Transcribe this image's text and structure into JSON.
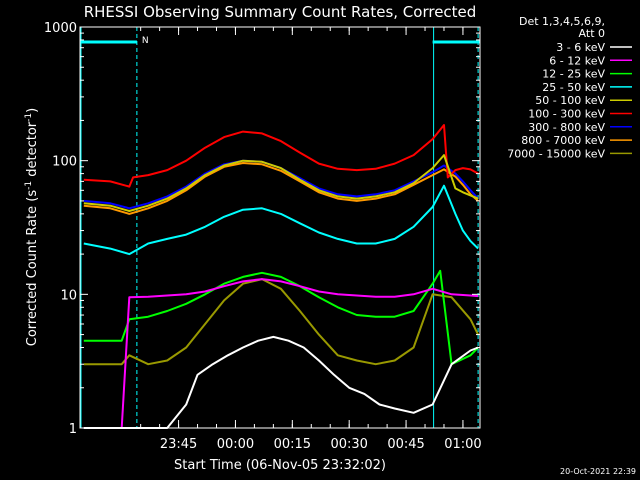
{
  "chart_data": {
    "type": "line",
    "title": "RHESSI Observing Summary Count Rates, Corrected",
    "xlabel": "Start Time (06-Nov-05 23:32:02)",
    "ylabel": "Corrected Count Rate (s",
    "ylabel_sup1": "-1",
    "ylabel_mid": " detector",
    "ylabel_sup2": "-1",
    "ylabel_end": ")",
    "y_scale": "log",
    "ylim": [
      1,
      1000
    ],
    "y_ticks": [
      1,
      10,
      100,
      1000
    ],
    "y_tick_labels": [
      "1",
      "10",
      "100",
      "1000"
    ],
    "xlim_min": [
      -13.0,
      92.5
    ],
    "x_ticks_min": [
      13,
      28,
      43,
      58,
      73,
      88
    ],
    "x_tick_labels": [
      "23:45",
      "00:00",
      "00:15",
      "00:30",
      "00:45",
      "01:00"
    ],
    "legend": {
      "placement": "right",
      "header": [
        "Det 1,3,4,5,6,9,",
        "Att 0"
      ]
    },
    "series": [
      {
        "name": "3 - 6 keV",
        "color": "#ffffff",
        "x": [
          -12,
          5,
          10,
          15,
          18,
          22,
          26,
          30,
          34,
          38,
          42,
          46,
          50,
          54,
          58,
          62,
          66,
          70,
          75,
          80,
          85,
          90,
          92
        ],
        "y": [
          1.0,
          1.0,
          1.0,
          1.5,
          2.5,
          3.0,
          3.5,
          4.0,
          4.5,
          4.8,
          4.5,
          4.0,
          3.2,
          2.5,
          2.0,
          1.8,
          1.5,
          1.4,
          1.3,
          1.5,
          3.0,
          3.8,
          4.0
        ]
      },
      {
        "name": "6 - 12 keV",
        "color": "#ff00ff",
        "x": [
          -12,
          -2,
          0,
          5,
          10,
          15,
          20,
          25,
          30,
          35,
          40,
          45,
          50,
          55,
          60,
          65,
          70,
          75,
          80,
          85,
          90,
          92
        ],
        "y": [
          1.0,
          1.0,
          9.5,
          9.6,
          9.8,
          10.0,
          10.5,
          11.5,
          12.5,
          13.0,
          12.5,
          11.5,
          10.5,
          10.0,
          9.8,
          9.6,
          9.6,
          10.0,
          11.0,
          10.0,
          9.8,
          9.7
        ]
      },
      {
        "name": "12 - 25 keV",
        "color": "#00ff00",
        "x": [
          -12,
          -2,
          0,
          5,
          10,
          15,
          20,
          25,
          30,
          35,
          40,
          45,
          50,
          55,
          60,
          65,
          70,
          75,
          80,
          82,
          85,
          90,
          92
        ],
        "y": [
          4.5,
          4.5,
          6.5,
          6.8,
          7.5,
          8.5,
          10.0,
          12.0,
          13.5,
          14.5,
          13.5,
          11.5,
          9.5,
          8.0,
          7.0,
          6.8,
          6.8,
          7.5,
          12.0,
          15.0,
          3.0,
          3.5,
          4.0
        ]
      },
      {
        "name": "25 - 50 keV",
        "color": "#00ffff",
        "x": [
          -12,
          -5,
          0,
          5,
          10,
          15,
          20,
          25,
          30,
          35,
          40,
          45,
          50,
          55,
          60,
          65,
          70,
          75,
          80,
          83,
          86,
          88,
          90,
          92
        ],
        "y": [
          24,
          22,
          20,
          24,
          26,
          28,
          32,
          38,
          43,
          44,
          40,
          34,
          29,
          26,
          24,
          24,
          26,
          32,
          45,
          65,
          40,
          30,
          25,
          22
        ]
      },
      {
        "name": "50 - 100 keV",
        "color": "#cccc00",
        "x": [
          -12,
          -5,
          0,
          5,
          10,
          15,
          20,
          25,
          30,
          35,
          40,
          45,
          50,
          55,
          60,
          65,
          70,
          75,
          80,
          83,
          86,
          88,
          90,
          92
        ],
        "y": [
          48,
          46,
          42,
          46,
          52,
          62,
          78,
          92,
          100,
          98,
          88,
          72,
          60,
          54,
          52,
          54,
          58,
          68,
          88,
          110,
          62,
          58,
          55,
          52
        ]
      },
      {
        "name": "100 - 300 keV",
        "color": "#ff0000",
        "x": [
          -12,
          -5,
          0,
          1,
          5,
          10,
          15,
          20,
          25,
          30,
          35,
          40,
          45,
          50,
          55,
          60,
          65,
          70,
          75,
          80,
          83,
          84,
          86,
          88,
          90,
          92
        ],
        "y": [
          72,
          70,
          64,
          75,
          78,
          85,
          100,
          125,
          150,
          165,
          160,
          140,
          115,
          95,
          87,
          85,
          87,
          95,
          110,
          145,
          185,
          75,
          85,
          88,
          86,
          80
        ]
      },
      {
        "name": "300 - 800 keV",
        "color": "#0000ff",
        "x": [
          -12,
          -5,
          0,
          5,
          10,
          15,
          20,
          25,
          30,
          35,
          40,
          45,
          50,
          55,
          60,
          65,
          70,
          75,
          80,
          83,
          86,
          88,
          90,
          92
        ],
        "y": [
          50,
          48,
          44,
          48,
          54,
          64,
          80,
          94,
          100,
          98,
          88,
          74,
          62,
          56,
          54,
          56,
          60,
          70,
          82,
          92,
          80,
          70,
          60,
          52
        ]
      },
      {
        "name": "800 - 7000 keV",
        "color": "#ff9900",
        "x": [
          -12,
          -5,
          0,
          5,
          10,
          15,
          20,
          25,
          30,
          35,
          40,
          45,
          50,
          55,
          60,
          65,
          70,
          75,
          80,
          83,
          86,
          88,
          90,
          92
        ],
        "y": [
          46,
          44,
          40,
          44,
          50,
          60,
          76,
          90,
          96,
          94,
          84,
          70,
          58,
          52,
          50,
          52,
          56,
          66,
          78,
          86,
          76,
          66,
          56,
          50
        ]
      },
      {
        "name": "7000 - 15000 keV",
        "color": "#999900",
        "x": [
          -12,
          -2,
          0,
          5,
          10,
          15,
          20,
          25,
          30,
          35,
          40,
          45,
          50,
          55,
          60,
          65,
          70,
          75,
          80,
          85,
          90,
          92
        ],
        "y": [
          3.0,
          3.0,
          3.5,
          3.0,
          3.2,
          4.0,
          6.0,
          9.0,
          12.0,
          13.0,
          11.0,
          7.5,
          5.0,
          3.5,
          3.2,
          3.0,
          3.2,
          4.0,
          10.0,
          9.5,
          6.5,
          5.0
        ]
      }
    ],
    "annotations": {
      "top_left_bar_x": [
        -13.0,
        2.0
      ],
      "top_right_bar_x": [
        80.0,
        92.5
      ],
      "dashed_x": [
        2.0,
        92.0
      ],
      "solid_x": [
        -13.0,
        80.0
      ],
      "marker_label": "N",
      "timestamp": "20-Oct-2021 22:39"
    }
  }
}
